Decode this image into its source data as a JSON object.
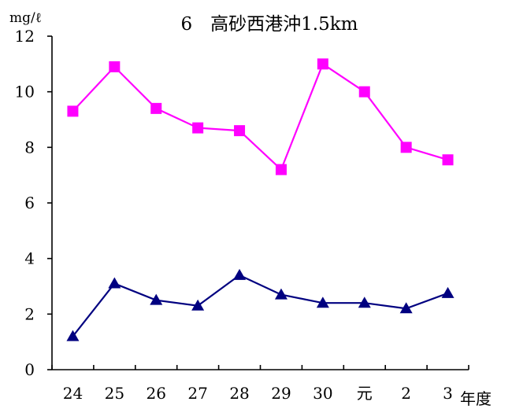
{
  "chart_data": {
    "type": "line",
    "title": "6　高砂西港沖1.5km",
    "ylabel": "mg/ℓ",
    "xunit": "年度",
    "categories": [
      "24",
      "25",
      "26",
      "27",
      "28",
      "29",
      "30",
      "元",
      "2",
      "3"
    ],
    "ylim": [
      0,
      12
    ],
    "yticks": [
      "0",
      "2",
      "4",
      "6",
      "8",
      "10",
      "12"
    ],
    "grid": false,
    "legend": "none",
    "series": [
      {
        "marker": "square",
        "color": "#ff00ff",
        "values": [
          9.3,
          10.9,
          9.4,
          8.7,
          8.6,
          7.2,
          11.0,
          10.0,
          8.0,
          7.55
        ]
      },
      {
        "marker": "triangle",
        "color": "#000080",
        "values": [
          1.2,
          3.1,
          2.5,
          2.3,
          3.4,
          2.7,
          2.4,
          2.4,
          2.2,
          2.75
        ]
      }
    ]
  }
}
